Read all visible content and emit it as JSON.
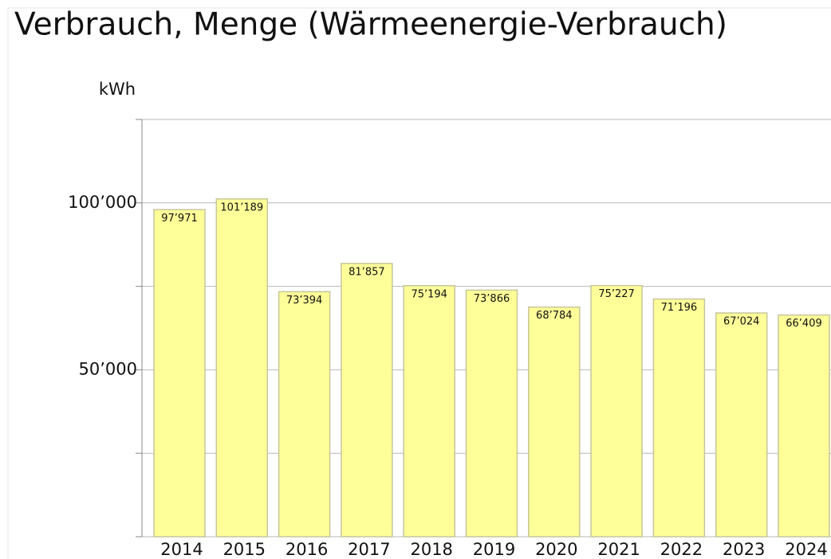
{
  "chart_data": {
    "type": "bar",
    "title": "Verbrauch, Menge (Wärmeenergie-Verbrauch)",
    "y_axis_label": "kWh",
    "categories": [
      "2014",
      "2015",
      "2016",
      "2017",
      "2018",
      "2019",
      "2020",
      "2021",
      "2022",
      "2023",
      "2024"
    ],
    "values": [
      97971,
      101189,
      73394,
      81857,
      75194,
      73866,
      68784,
      75227,
      71196,
      67024,
      66409
    ],
    "value_labels": [
      "97’971",
      "101’189",
      "73’394",
      "81’857",
      "75’194",
      "73’866",
      "68’784",
      "75’227",
      "71’196",
      "67’024",
      "66’409"
    ],
    "color": "#ffff99",
    "ylim": [
      0,
      125000
    ],
    "yticks": [
      {
        "value": 0,
        "label": null
      },
      {
        "value": 25000,
        "label": null
      },
      {
        "value": 50000,
        "label": "50’000"
      },
      {
        "value": 75000,
        "label": null
      },
      {
        "value": 100000,
        "label": "100’000"
      },
      {
        "value": 125000,
        "label": null
      }
    ],
    "grid": true
  }
}
